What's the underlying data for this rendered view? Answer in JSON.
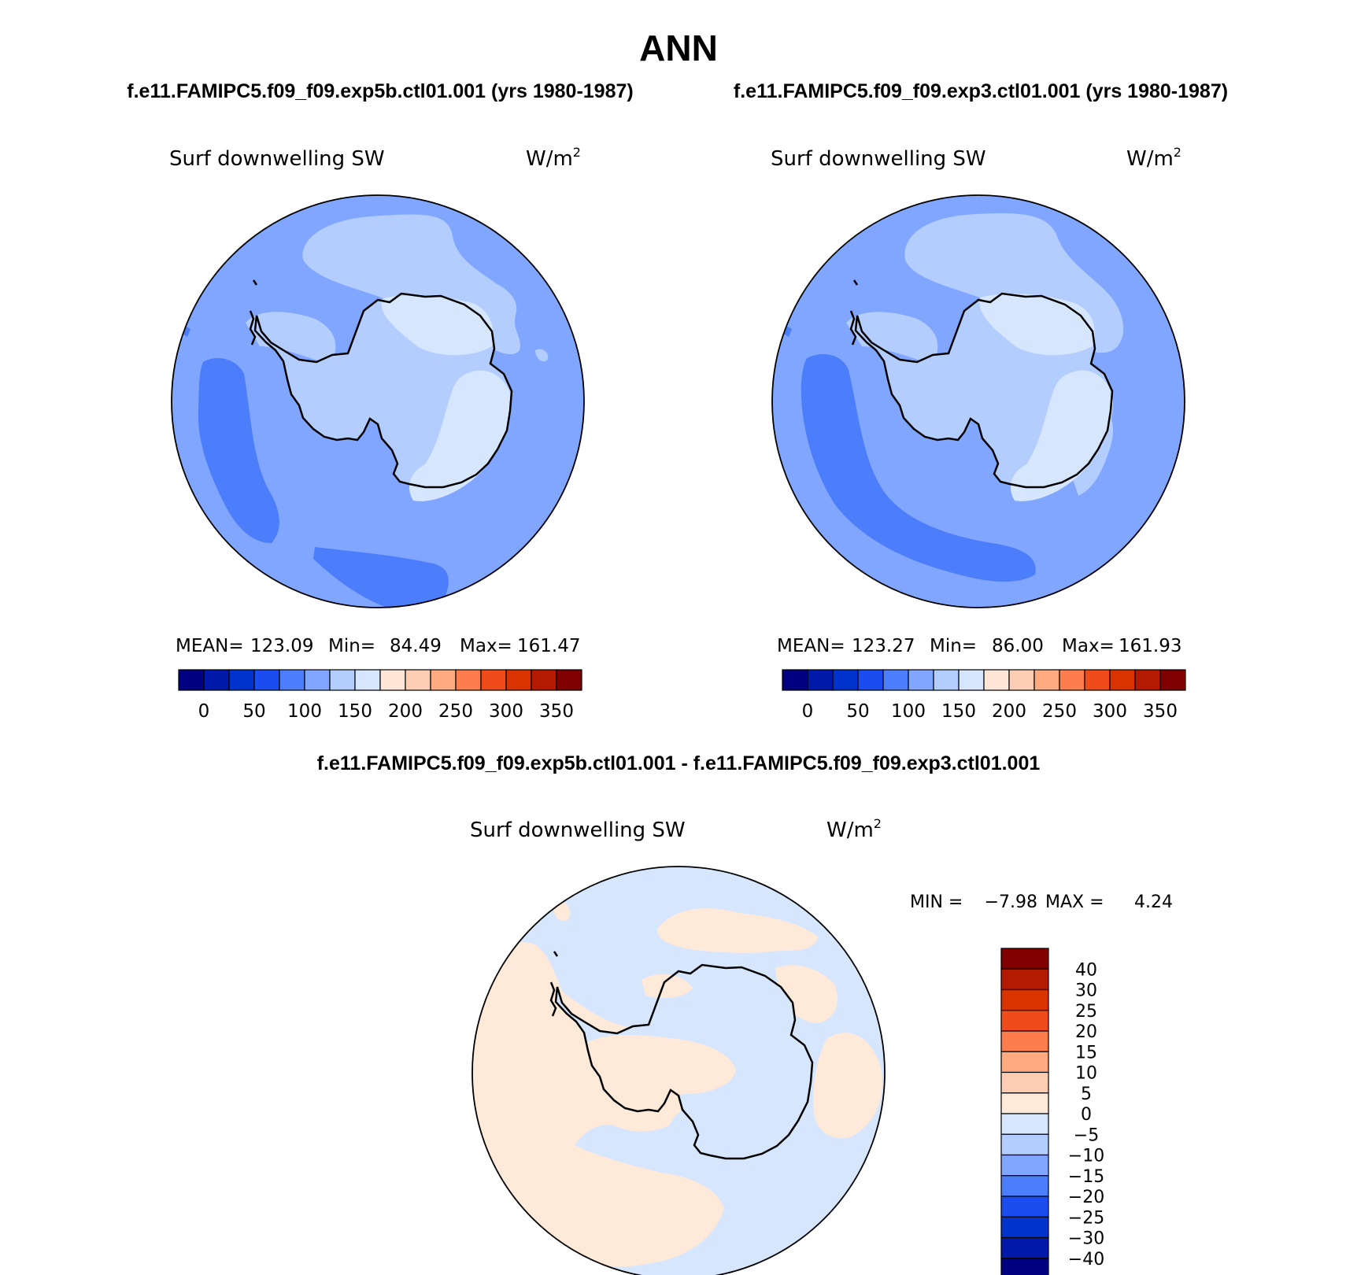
{
  "title": "ANN",
  "panels": [
    {
      "case_label": "f.e11.FAMIPC5.f09_f09.exp5b.ctl01.001 (yrs 1980-1987)",
      "variable": "Surf downwelling SW",
      "units": "W/m",
      "units_exp": "2",
      "stats": {
        "mean_label": "MEAN=",
        "mean": "123.09",
        "min_label": "Min=",
        "min": "84.49",
        "max_label": "Max=",
        "max": "161.47"
      },
      "colorbar_ticks": [
        "0",
        "50",
        "100",
        "150",
        "200",
        "250",
        "300",
        "350"
      ]
    },
    {
      "case_label": "f.e11.FAMIPC5.f09_f09.exp3.ctl01.001 (yrs 1980-1987)",
      "variable": "Surf downwelling SW",
      "units": "W/m",
      "units_exp": "2",
      "stats": {
        "mean_label": "MEAN=",
        "mean": "123.27",
        "min_label": "Min=",
        "min": "86.00",
        "max_label": "Max=",
        "max": "161.93"
      },
      "colorbar_ticks": [
        "0",
        "50",
        "100",
        "150",
        "200",
        "250",
        "300",
        "350"
      ]
    }
  ],
  "diff_panel": {
    "case_label": "f.e11.FAMIPC5.f09_f09.exp5b.ctl01.001 - f.e11.FAMIPC5.f09_f09.exp3.ctl01.001",
    "variable": "Surf downwelling SW",
    "units": "W/m",
    "units_exp": "2",
    "stats": {
      "min_label": "MIN =",
      "min": "−7.98",
      "max_label": "MAX =",
      "max": "4.24"
    },
    "colorbar_ticks": [
      "40",
      "30",
      "25",
      "20",
      "15",
      "10",
      "5",
      "0",
      "−5",
      "−10",
      "−15",
      "−20",
      "−25",
      "−30",
      "−40"
    ]
  },
  "colors": {
    "field_scale": [
      "#000080",
      "#0019a8",
      "#0033cc",
      "#1a4cf0",
      "#4c7dfa",
      "#80a6ff",
      "#b3cdff",
      "#d6e6ff",
      "#ffe6d6",
      "#ffcdb3",
      "#ffaa80",
      "#ff7d4c",
      "#f04c1a",
      "#d93300",
      "#b31a00",
      "#800000"
    ],
    "diff_scale": [
      "#000080",
      "#0019a8",
      "#0033cc",
      "#1a4cf0",
      "#4c7dfa",
      "#80a6ff",
      "#b3cdff",
      "#d6e6ff",
      "#ffe9d9",
      "#ffcdb3",
      "#ffaa80",
      "#ff7d4c",
      "#f04c1a",
      "#d93300",
      "#b31a00",
      "#800000"
    ]
  }
}
